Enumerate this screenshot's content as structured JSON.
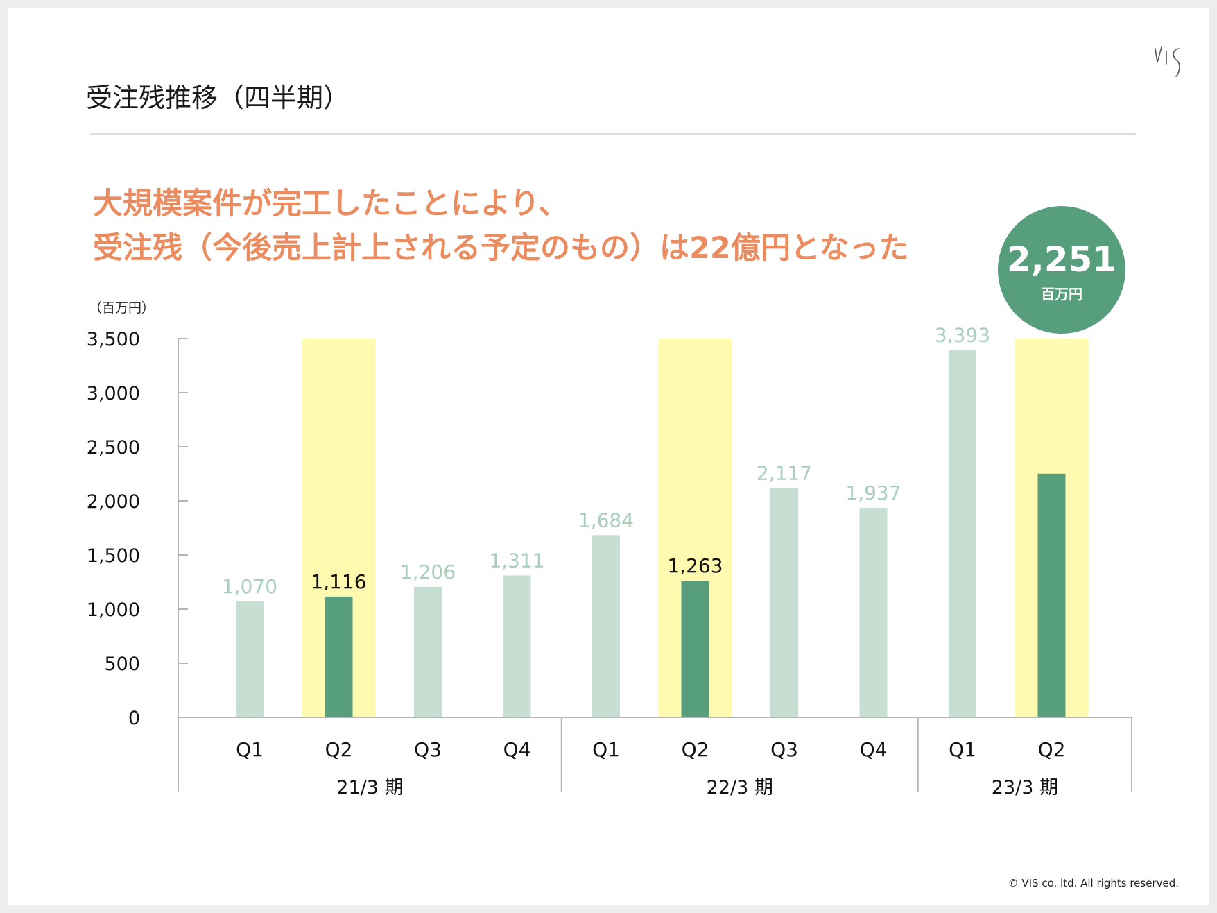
{
  "header": {
    "title": "受注残推移（四半期）",
    "logo_text": "VIS"
  },
  "headline": {
    "line1": "大規模案件が完工したことにより、",
    "line2": "受注残（今後売上計上される予定のもの）は22億円となった"
  },
  "badge": {
    "value": "2,251",
    "unit": "百万円"
  },
  "footer": {
    "copyright": "© VIS co. ltd. All rights reserved."
  },
  "colors": {
    "accent_orange": "#ea8c5f",
    "bar_light": "#c7dfd2",
    "bar_dark": "#579e7d",
    "highlight_band": "#fffaaf",
    "label_light": "#a9cfbb",
    "label_dark": "#111111"
  },
  "chart_data": {
    "type": "bar",
    "title": "受注残推移（四半期）",
    "ylabel": "（百万円）",
    "xlabel": "",
    "ylim": [
      0,
      3500
    ],
    "yticks": [
      0,
      500,
      1000,
      1500,
      2000,
      2500,
      3000,
      3500
    ],
    "ytick_labels": [
      "0",
      "500",
      "1,000",
      "1,500",
      "2,000",
      "2,500",
      "3,000",
      "3,500"
    ],
    "categories": [
      "Q1",
      "Q2",
      "Q3",
      "Q4",
      "Q1",
      "Q2",
      "Q3",
      "Q4",
      "Q1",
      "Q2"
    ],
    "values": [
      1070,
      1116,
      1206,
      1311,
      1684,
      1263,
      2117,
      1937,
      3393,
      2251
    ],
    "value_labels": [
      "1,070",
      "1,116",
      "1,206",
      "1,311",
      "1,684",
      "1,263",
      "2,117",
      "1,937",
      "3,393",
      ""
    ],
    "highlighted": [
      false,
      true,
      false,
      false,
      false,
      true,
      false,
      false,
      false,
      true
    ],
    "groups": [
      {
        "label": "21/3 期",
        "start": 0,
        "count": 4
      },
      {
        "label": "22/3 期",
        "start": 4,
        "count": 4
      },
      {
        "label": "23/3 期",
        "start": 8,
        "count": 2
      }
    ],
    "grid": false,
    "legend": "none"
  }
}
